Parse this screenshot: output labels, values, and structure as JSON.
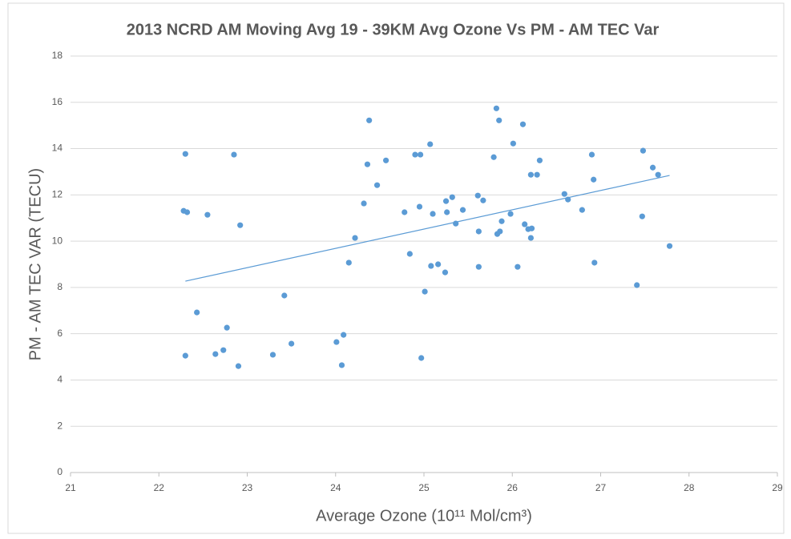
{
  "chart_data": {
    "type": "scatter",
    "title": "2013 NCRD AM Moving Avg 19 - 39KM Avg Ozone Vs PM - AM TEC Var",
    "x_label": "Average Ozone (10¹¹ Mol/cm³)",
    "y_label": "PM - AM TEC VAR (TECU)",
    "xlim": [
      21,
      29
    ],
    "xticks": [
      21,
      22,
      23,
      24,
      25,
      26,
      27,
      28,
      29
    ],
    "ylim": [
      0,
      18
    ],
    "yticks": [
      0,
      2,
      4,
      6,
      8,
      10,
      12,
      14,
      16,
      18
    ],
    "grid": true,
    "series": [
      {
        "color": "#5b9bd5",
        "x": [
          22.3,
          22.28,
          22.32,
          22.3,
          22.55,
          22.43,
          22.64,
          22.73,
          22.77,
          22.85,
          22.9,
          22.92,
          23.29,
          23.42,
          23.5,
          24.01,
          24.07,
          24.09,
          24.15,
          24.22,
          24.32,
          24.36,
          24.38,
          24.47,
          24.57,
          24.78,
          24.84,
          24.9,
          24.96,
          24.95,
          24.97,
          25.01,
          25.07,
          25.08,
          25.1,
          25.16,
          25.24,
          25.25,
          25.26,
          25.32,
          25.36,
          25.44,
          25.61,
          25.62,
          25.62,
          25.67,
          25.79,
          25.82,
          25.83,
          25.85,
          25.86,
          25.88,
          25.98,
          26.01,
          26.06,
          26.12,
          26.14,
          26.18,
          26.22,
          26.21,
          26.21,
          26.28,
          26.31,
          26.59,
          26.63,
          26.79,
          26.9,
          26.92,
          26.93,
          27.41,
          27.48,
          27.47,
          27.59,
          27.65,
          27.78
        ],
        "values": [
          13.77,
          11.31,
          11.25,
          5.05,
          11.14,
          6.92,
          5.12,
          5.29,
          6.26,
          13.74,
          4.6,
          10.69,
          5.09,
          7.65,
          5.57,
          5.64,
          4.64,
          5.95,
          9.07,
          10.14,
          11.63,
          13.32,
          15.22,
          12.42,
          13.49,
          11.25,
          9.45,
          13.74,
          13.74,
          11.49,
          4.95,
          7.82,
          14.19,
          8.93,
          11.18,
          9.0,
          8.65,
          11.73,
          11.25,
          11.9,
          10.76,
          11.35,
          11.97,
          10.42,
          8.89,
          11.76,
          13.63,
          15.74,
          10.31,
          15.22,
          10.42,
          10.86,
          11.18,
          14.22,
          8.89,
          15.05,
          10.73,
          10.52,
          10.55,
          10.14,
          12.87,
          12.87,
          13.49,
          12.04,
          11.8,
          11.35,
          13.74,
          12.66,
          9.07,
          8.1,
          13.91,
          11.07,
          13.18,
          12.87,
          9.79
        ]
      }
    ],
    "trendline": {
      "color": "#5b9bd5",
      "x": [
        22.3,
        27.78
      ],
      "values": [
        8.27,
        12.84
      ]
    }
  }
}
